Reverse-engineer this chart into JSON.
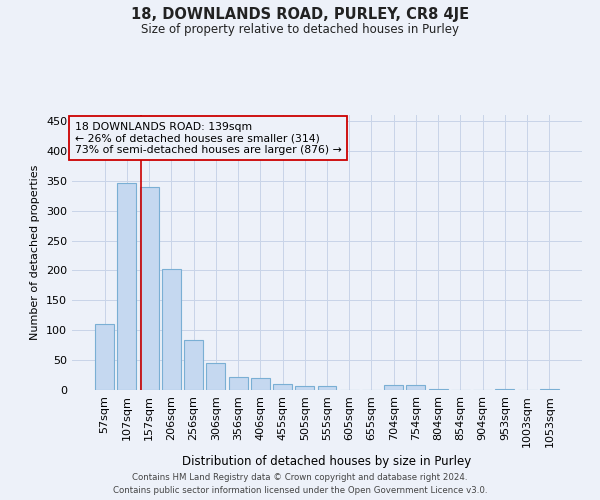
{
  "title": "18, DOWNLANDS ROAD, PURLEY, CR8 4JE",
  "subtitle": "Size of property relative to detached houses in Purley",
  "xlabel": "Distribution of detached houses by size in Purley",
  "ylabel": "Number of detached properties",
  "footer_line1": "Contains HM Land Registry data © Crown copyright and database right 2024.",
  "footer_line2": "Contains public sector information licensed under the Open Government Licence v3.0.",
  "annotation_line1": "18 DOWNLANDS ROAD: 139sqm",
  "annotation_line2": "← 26% of detached houses are smaller (314)",
  "annotation_line3": "73% of semi-detached houses are larger (876) →",
  "bar_color": "#c5d8f0",
  "bar_edge_color": "#7aafd4",
  "grid_color": "#c8d4e8",
  "annotation_box_edge_color": "#cc0000",
  "vline_color": "#cc0000",
  "background_color": "#edf1f9",
  "categories": [
    "57sqm",
    "107sqm",
    "157sqm",
    "206sqm",
    "256sqm",
    "306sqm",
    "356sqm",
    "406sqm",
    "455sqm",
    "505sqm",
    "555sqm",
    "605sqm",
    "655sqm",
    "704sqm",
    "754sqm",
    "804sqm",
    "854sqm",
    "904sqm",
    "953sqm",
    "1003sqm",
    "1053sqm"
  ],
  "values": [
    110,
    347,
    340,
    203,
    83,
    46,
    22,
    20,
    10,
    7,
    6,
    0,
    0,
    8,
    8,
    2,
    0,
    0,
    2,
    0,
    2
  ],
  "vline_x": 1.62,
  "ylim": [
    0,
    460
  ],
  "yticks": [
    0,
    50,
    100,
    150,
    200,
    250,
    300,
    350,
    400,
    450
  ]
}
